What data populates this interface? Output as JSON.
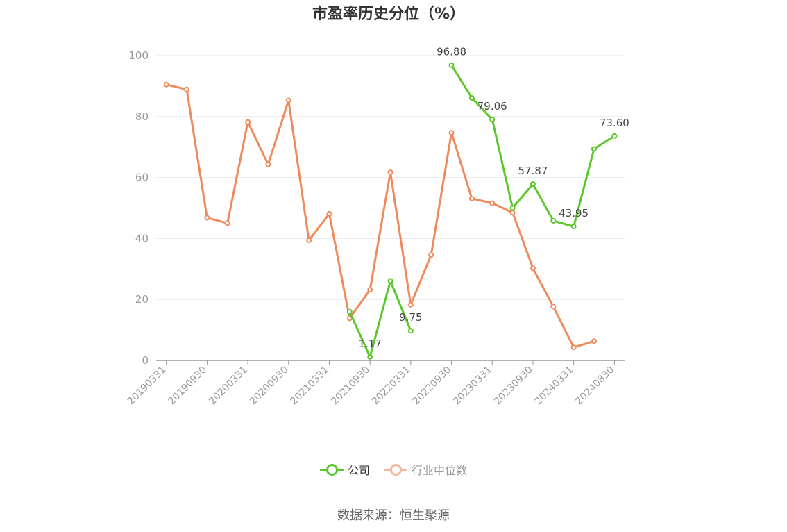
{
  "colors": {
    "company": "#5cc72c",
    "industry": "#ef8a5c",
    "industry_legend": "#f5b79a",
    "grid": "#e6e8ef",
    "axis": "#999999"
  },
  "chart_data": {
    "type": "line",
    "title": "市盈率历史分位（%）",
    "source": "数据来源：恒生聚源",
    "ylim": [
      0,
      100
    ],
    "yticks": [
      0,
      20,
      40,
      60,
      80,
      100
    ],
    "categories": [
      "20190331",
      "20190630",
      "20190930",
      "20191231",
      "20200331",
      "20200630",
      "20200930",
      "20201231",
      "20210331",
      "20210630",
      "20210930",
      "20211231",
      "20220331",
      "20220630",
      "20220930",
      "20221231",
      "20230331",
      "20230630",
      "20230930",
      "20231231",
      "20240331",
      "20240630",
      "20240830"
    ],
    "xtick_labels": [
      "20190331",
      "20190930",
      "20200331",
      "20200930",
      "20210331",
      "20210930",
      "20220331",
      "20220930",
      "20230331",
      "20230930",
      "20240331",
      "20240830"
    ],
    "series": [
      {
        "name": "公司",
        "color_key": "company",
        "values": [
          null,
          null,
          null,
          null,
          null,
          null,
          null,
          null,
          null,
          16.0,
          1.17,
          26.1,
          9.75,
          null,
          96.88,
          86.1,
          79.06,
          50.0,
          57.87,
          45.8,
          43.95,
          69.4,
          73.6
        ],
        "labels": {
          "10": "1.17",
          "12": "9.75",
          "14": "96.88",
          "16": "79.06",
          "18": "57.87",
          "20": "43.95",
          "22": "73.60"
        }
      },
      {
        "name": "行业中位数",
        "color_key": "industry",
        "values": [
          90.5,
          88.9,
          46.8,
          45.0,
          78.2,
          64.3,
          85.3,
          39.4,
          48.1,
          13.8,
          23.2,
          61.7,
          18.3,
          34.6,
          74.7,
          53.1,
          51.6,
          48.5,
          30.2,
          17.7,
          4.3,
          6.3,
          null
        ]
      }
    ],
    "legend_position": "bottom",
    "grid": true
  }
}
